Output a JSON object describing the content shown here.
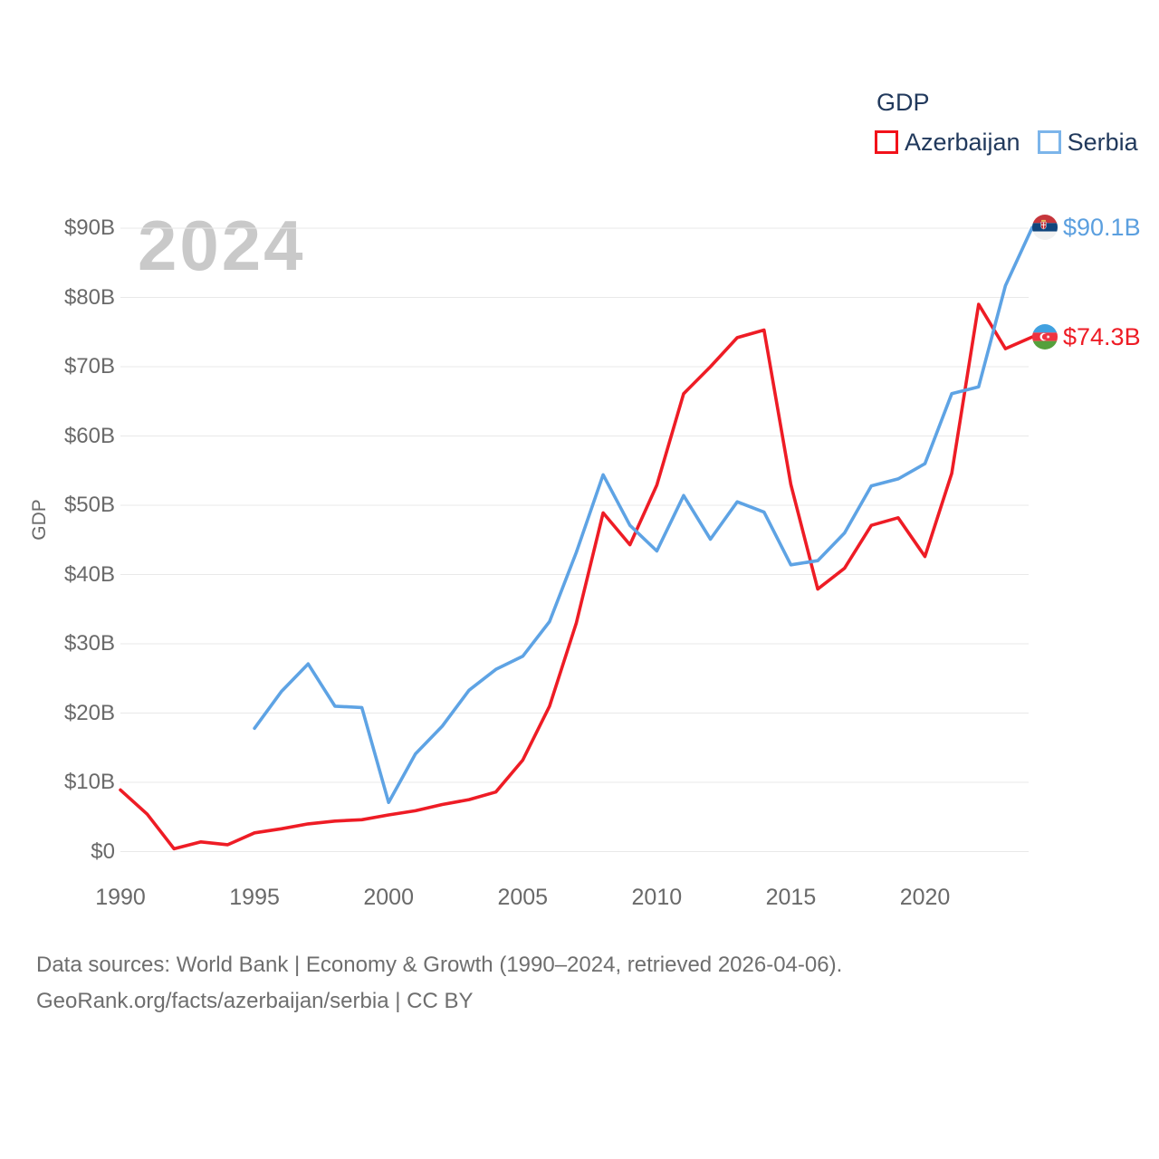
{
  "watermark": "2024",
  "legend": {
    "title": "GDP",
    "items": [
      {
        "label": "Azerbaijan",
        "swatch_color": "#f2121a"
      },
      {
        "label": "Serbia",
        "swatch_color": "#7cb5ea"
      }
    ]
  },
  "y_axis": {
    "label": "GDP",
    "ticks": [
      {
        "value": 0,
        "label": "$0"
      },
      {
        "value": 10,
        "label": "$10B"
      },
      {
        "value": 20,
        "label": "$20B"
      },
      {
        "value": 30,
        "label": "$30B"
      },
      {
        "value": 40,
        "label": "$40B"
      },
      {
        "value": 50,
        "label": "$50B"
      },
      {
        "value": 60,
        "label": "$60B"
      },
      {
        "value": 70,
        "label": "$70B"
      },
      {
        "value": 80,
        "label": "$80B"
      },
      {
        "value": 90,
        "label": "$90B"
      }
    ]
  },
  "x_axis": {
    "ticks": [
      {
        "value": 1990,
        "label": "1990"
      },
      {
        "value": 1995,
        "label": "1995"
      },
      {
        "value": 2000,
        "label": "2000"
      },
      {
        "value": 2005,
        "label": "2005"
      },
      {
        "value": 2010,
        "label": "2010"
      },
      {
        "value": 2015,
        "label": "2015"
      },
      {
        "value": 2020,
        "label": "2020"
      }
    ]
  },
  "end_labels": [
    {
      "series": "Serbia",
      "label": "$90.1B",
      "value": 90.1,
      "color": "#5b9fdf",
      "icon": "serbia-flag-icon"
    },
    {
      "series": "Azerbaijan",
      "label": "$74.3B",
      "value": 74.3,
      "color": "#ee1c25",
      "icon": "azerbaijan-flag-icon"
    }
  ],
  "footer": {
    "line1": "Data sources: World Bank | Economy & Growth (1990–2024, retrieved 2026-04-06).",
    "line2": "GeoRank.org/facts/azerbaijan/serbia | CC BY"
  },
  "chart_data": {
    "type": "line",
    "title": "GDP",
    "xlabel": "",
    "ylabel": "GDP",
    "x": [
      1990,
      1991,
      1992,
      1993,
      1994,
      1995,
      1996,
      1997,
      1998,
      1999,
      2000,
      2001,
      2002,
      2003,
      2004,
      2005,
      2006,
      2007,
      2008,
      2009,
      2010,
      2011,
      2012,
      2013,
      2014,
      2015,
      2016,
      2017,
      2018,
      2019,
      2020,
      2021,
      2022,
      2023,
      2024
    ],
    "series": [
      {
        "name": "Azerbaijan",
        "color": "#ee1c25",
        "values": [
          8.9,
          5.4,
          0.4,
          1.4,
          1.0,
          2.7,
          3.3,
          4.0,
          4.4,
          4.6,
          5.3,
          5.9,
          6.8,
          7.5,
          8.6,
          13.2,
          21.0,
          33.0,
          48.9,
          44.3,
          52.9,
          66.1,
          70.0,
          74.2,
          75.3,
          53.0,
          37.9,
          40.9,
          47.1,
          48.2,
          42.6,
          54.6,
          79.0,
          72.6,
          74.3
        ]
      },
      {
        "name": "Serbia",
        "color": "#5ea3e4",
        "values": [
          null,
          null,
          null,
          null,
          null,
          17.8,
          23.1,
          27.1,
          21.0,
          20.8,
          7.1,
          14.1,
          18.1,
          23.3,
          26.3,
          28.2,
          33.2,
          43.2,
          54.4,
          47.1,
          43.4,
          51.4,
          45.1,
          50.5,
          49.0,
          41.4,
          42.0,
          46.0,
          52.8,
          53.8,
          56.0,
          66.1,
          67.1,
          81.7,
          90.1
        ]
      }
    ],
    "xlim": [
      1990,
      2024
    ],
    "ylim": [
      0,
      90
    ],
    "grid": "horizontal",
    "legend_position": "top-right",
    "units": "current US$ billions"
  }
}
